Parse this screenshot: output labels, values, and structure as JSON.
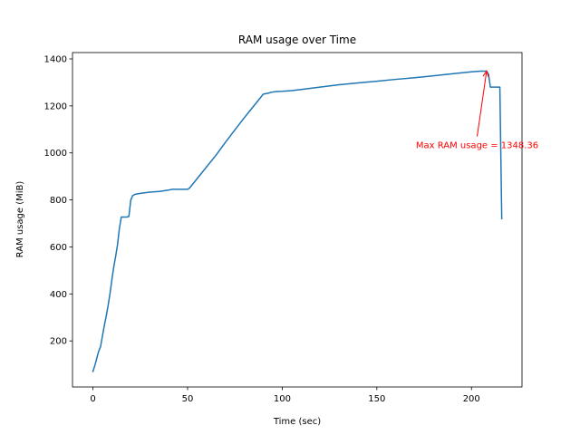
{
  "chart_data": {
    "type": "line",
    "title": "RAM usage over Time",
    "xlabel": "Time (sec)",
    "ylabel": "RAM usage (MiB)",
    "xlim": [
      -10.8,
      226.7
    ],
    "ylim": [
      4,
      1427
    ],
    "xticks": [
      0,
      50,
      100,
      150,
      200
    ],
    "yticks": [
      200,
      400,
      600,
      800,
      1000,
      1200,
      1400
    ],
    "grid": false,
    "legend": "none",
    "series": [
      {
        "color": "#1f77b4",
        "x": [
          0,
          1,
          2,
          3,
          4,
          5,
          6,
          7,
          8,
          9,
          10,
          11,
          12,
          13,
          14,
          15,
          16,
          17,
          18,
          19,
          20,
          21,
          22,
          23,
          25,
          30,
          35,
          40,
          42,
          45,
          48,
          50,
          51,
          55,
          60,
          65,
          70,
          75,
          80,
          85,
          90,
          93,
          94,
          95,
          96,
          97,
          100,
          105,
          110,
          120,
          130,
          140,
          150,
          160,
          170,
          180,
          190,
          200,
          205,
          208,
          209,
          210,
          213,
          214,
          215,
          216
        ],
        "y": [
          70,
          95,
          125,
          155,
          175,
          220,
          265,
          305,
          350,
          400,
          460,
          515,
          560,
          610,
          680,
          727,
          727,
          727,
          727,
          730,
          800,
          818,
          823,
          825,
          828,
          833,
          836,
          842,
          845,
          845,
          845,
          845,
          850,
          890,
          940,
          990,
          1045,
          1098,
          1150,
          1200,
          1250,
          1255,
          1258,
          1259,
          1260,
          1261,
          1262,
          1265,
          1270,
          1280,
          1290,
          1298,
          1305,
          1313,
          1320,
          1328,
          1337,
          1345,
          1348,
          1348,
          1335,
          1280,
          1280,
          1280,
          1280,
          720
        ]
      }
    ],
    "annotations": [
      {
        "text": "Max RAM usage = 1348.36",
        "color": "#ff0000",
        "point": [
          208,
          1348.36
        ],
        "text_at": [
          203,
          1070
        ]
      }
    ]
  }
}
